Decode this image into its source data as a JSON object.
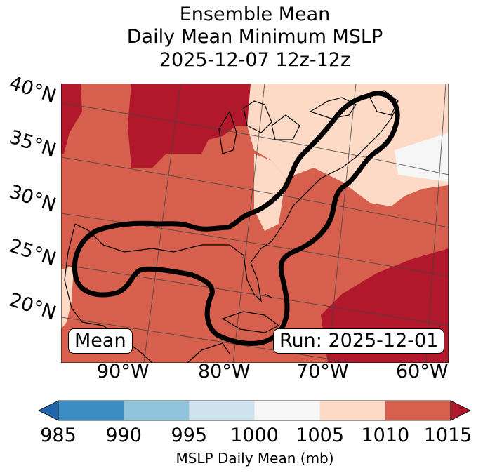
{
  "title": {
    "line1": "Ensemble Mean",
    "line2": "Daily Mean Minimum MSLP",
    "line3": "2025-12-07 12z-12z"
  },
  "map": {
    "lat_labels": [
      "40°N",
      "35°N",
      "30°N",
      "25°N",
      "20°N"
    ],
    "lon_labels": [
      "90°W",
      "80°W",
      "70°W",
      "60°W"
    ],
    "box_left": "Mean",
    "box_right": "Run: 2025-12-01"
  },
  "colorbar": {
    "ticks": [
      "985",
      "990",
      "995",
      "1000",
      "1005",
      "1010",
      "1015"
    ],
    "label": "MSLP Daily Mean (mb)",
    "colors": [
      "#2166ac",
      "#3c8dc3",
      "#90c4dd",
      "#d0e4f0",
      "#f6f6f6",
      "#fddac5",
      "#d6604d",
      "#b1182b"
    ]
  },
  "palette": {
    "land_line": "#000000",
    "contour": "#000000",
    "grid": "#555555"
  }
}
